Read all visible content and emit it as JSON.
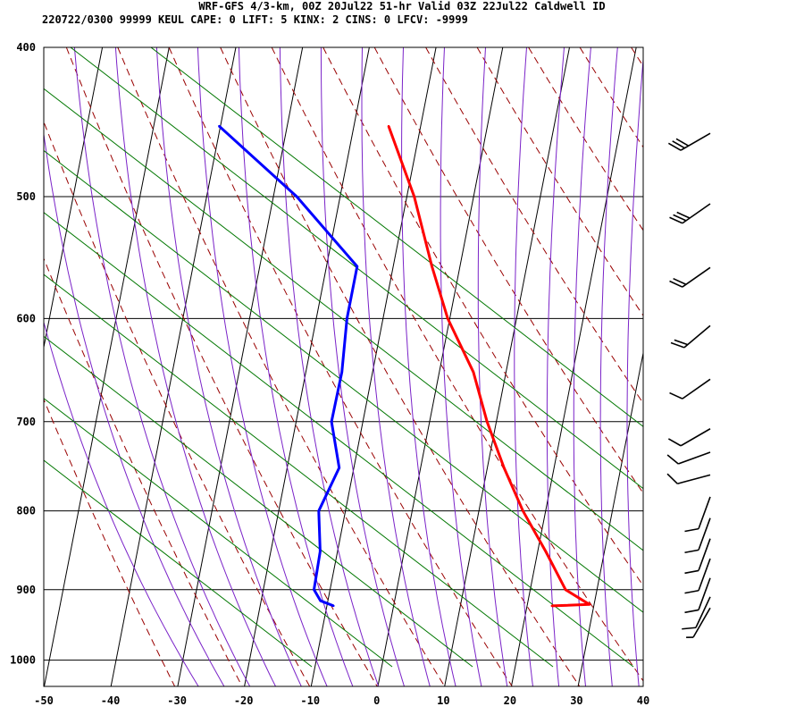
{
  "header": {
    "line1": "WRF-GFS 4/3-km, 00Z 20Jul22 51-hr Valid 03Z 22Jul22 Caldwell ID",
    "line2": "220722/0300 99999  KEUL    CAPE:     0 LIFT:     5 KINX:     2 CINS:     0 LFCV: -9999"
  },
  "chart_data": {
    "type": "line",
    "chart_kind": "skew-T log-P sounding",
    "x_axis": {
      "ticks": [
        -50,
        -40,
        -30,
        -20,
        -10,
        0,
        10,
        20,
        30,
        40
      ],
      "xlim": [
        -50,
        40
      ]
    },
    "y_axis": {
      "ticks": [
        400,
        500,
        600,
        700,
        800,
        900,
        1000
      ],
      "ylim": [
        1040,
        400
      ],
      "scale": "log"
    },
    "grid": true,
    "series": [
      {
        "color": "#ff0000",
        "points": [
          [
            -14.8,
            450
          ],
          [
            -8.9,
            500
          ],
          [
            -4.2,
            555
          ],
          [
            -0.3,
            600
          ],
          [
            5.1,
            650
          ],
          [
            8.6,
            700
          ],
          [
            12.5,
            750
          ],
          [
            16.6,
            800
          ],
          [
            21.2,
            850
          ],
          [
            25.3,
            900
          ],
          [
            29.3,
            920
          ],
          [
            23.7,
            922
          ]
        ]
      },
      {
        "color": "#0000ff",
        "points": [
          [
            -40.2,
            450
          ],
          [
            -26.5,
            500
          ],
          [
            -15.4,
            555
          ],
          [
            -15.4,
            600
          ],
          [
            -14.6,
            650
          ],
          [
            -14.7,
            700
          ],
          [
            -12.2,
            750
          ],
          [
            -14.0,
            800
          ],
          [
            -12.6,
            850
          ],
          [
            -12.4,
            900
          ],
          [
            -11.1,
            915
          ],
          [
            -9.0,
            922
          ]
        ]
      }
    ],
    "wind_barbs": [
      {
        "p": 450,
        "dir": 240,
        "speed": 30
      },
      {
        "p": 500,
        "dir": 235,
        "speed": 30
      },
      {
        "p": 550,
        "dir": 235,
        "speed": 20
      },
      {
        "p": 600,
        "dir": 230,
        "speed": 20
      },
      {
        "p": 650,
        "dir": 235,
        "speed": 10
      },
      {
        "p": 700,
        "dir": 240,
        "speed": 10
      },
      {
        "p": 725,
        "dir": 250,
        "speed": 10
      },
      {
        "p": 750,
        "dir": 255,
        "speed": 10
      },
      {
        "p": 775,
        "dir": 200,
        "speed": 10
      },
      {
        "p": 800,
        "dir": 200,
        "speed": 10
      },
      {
        "p": 825,
        "dir": 200,
        "speed": 10
      },
      {
        "p": 850,
        "dir": 200,
        "speed": 10
      },
      {
        "p": 875,
        "dir": 200,
        "speed": 10
      },
      {
        "p": 900,
        "dir": 205,
        "speed": 10
      },
      {
        "p": 915,
        "dir": 210,
        "speed": 5
      }
    ],
    "background": {
      "isotherm_color": "#000000",
      "isobar_color": "#000000",
      "dry_adiabat_color": "#990000",
      "moist_adiabat_color": "#7a22c8",
      "mixing_ratio_color": "#007700"
    }
  }
}
